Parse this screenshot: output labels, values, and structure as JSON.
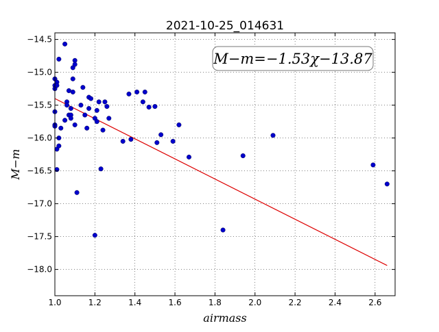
{
  "chart_data": {
    "type": "scatter",
    "title": "2021-10-25_014631",
    "xlabel": "airmass",
    "ylabel": "M−m",
    "xlim": [
      1.0,
      2.7
    ],
    "ylim": [
      -18.4,
      -14.4
    ],
    "xticks": [
      1.0,
      1.2,
      1.4,
      1.6,
      1.8,
      2.0,
      2.2,
      2.4,
      2.6
    ],
    "xtick_labels": [
      "1.0",
      "1.2",
      "1.4",
      "1.6",
      "1.8",
      "2.0",
      "2.2",
      "2.4",
      "2.6"
    ],
    "yticks": [
      -14.5,
      -15.0,
      -15.5,
      -16.0,
      -16.5,
      -17.0,
      -17.5,
      -18.0
    ],
    "ytick_labels": [
      "−14.5",
      "−15.0",
      "−15.5",
      "−16.0",
      "−16.5",
      "−17.0",
      "−17.5",
      "−18.0"
    ],
    "grid": true,
    "annotation": "M−m=−1.53χ−13.87",
    "colors": {
      "points": "#0000cc",
      "fit_line": "#dd0000"
    },
    "points": {
      "x": [
        1.0,
        1.0,
        1.0,
        1.0,
        1.0,
        1.0,
        1.01,
        1.01,
        1.01,
        1.01,
        1.02,
        1.02,
        1.02,
        1.03,
        1.05,
        1.05,
        1.06,
        1.06,
        1.07,
        1.07,
        1.08,
        1.08,
        1.08,
        1.09,
        1.09,
        1.09,
        1.1,
        1.1,
        1.1,
        1.11,
        1.13,
        1.14,
        1.15,
        1.16,
        1.17,
        1.17,
        1.18,
        1.2,
        1.2,
        1.21,
        1.21,
        1.22,
        1.23,
        1.24,
        1.25,
        1.26,
        1.27,
        1.34,
        1.37,
        1.38,
        1.41,
        1.44,
        1.45,
        1.47,
        1.5,
        1.51,
        1.53,
        1.59,
        1.62,
        1.67,
        1.84,
        1.94,
        2.09,
        2.59,
        2.66
      ],
      "y": [
        -15.1,
        -15.2,
        -15.25,
        -15.6,
        -15.8,
        -15.82,
        -16.48,
        -15.15,
        -15.2,
        -16.17,
        -16.0,
        -14.8,
        -16.12,
        -15.85,
        -14.57,
        -15.73,
        -15.45,
        -15.5,
        -15.28,
        -15.65,
        -15.55,
        -15.65,
        -15.7,
        -14.93,
        -15.1,
        -15.3,
        -14.82,
        -14.88,
        -15.8,
        -16.83,
        -15.5,
        -15.23,
        -15.65,
        -15.85,
        -15.38,
        -15.55,
        -15.4,
        -17.48,
        -15.7,
        -15.75,
        -15.58,
        -15.45,
        -16.47,
        -15.88,
        -15.45,
        -15.52,
        -15.7,
        -16.05,
        -15.33,
        -16.02,
        -15.3,
        -15.45,
        -15.3,
        -15.53,
        -15.52,
        -16.07,
        -15.95,
        -16.05,
        -15.8,
        -16.29,
        -17.4,
        -16.27,
        -15.96,
        -16.41,
        -16.7
      ]
    },
    "fit_line": {
      "x": [
        1.0,
        2.66
      ],
      "y": [
        -15.4,
        -17.94
      ]
    }
  }
}
